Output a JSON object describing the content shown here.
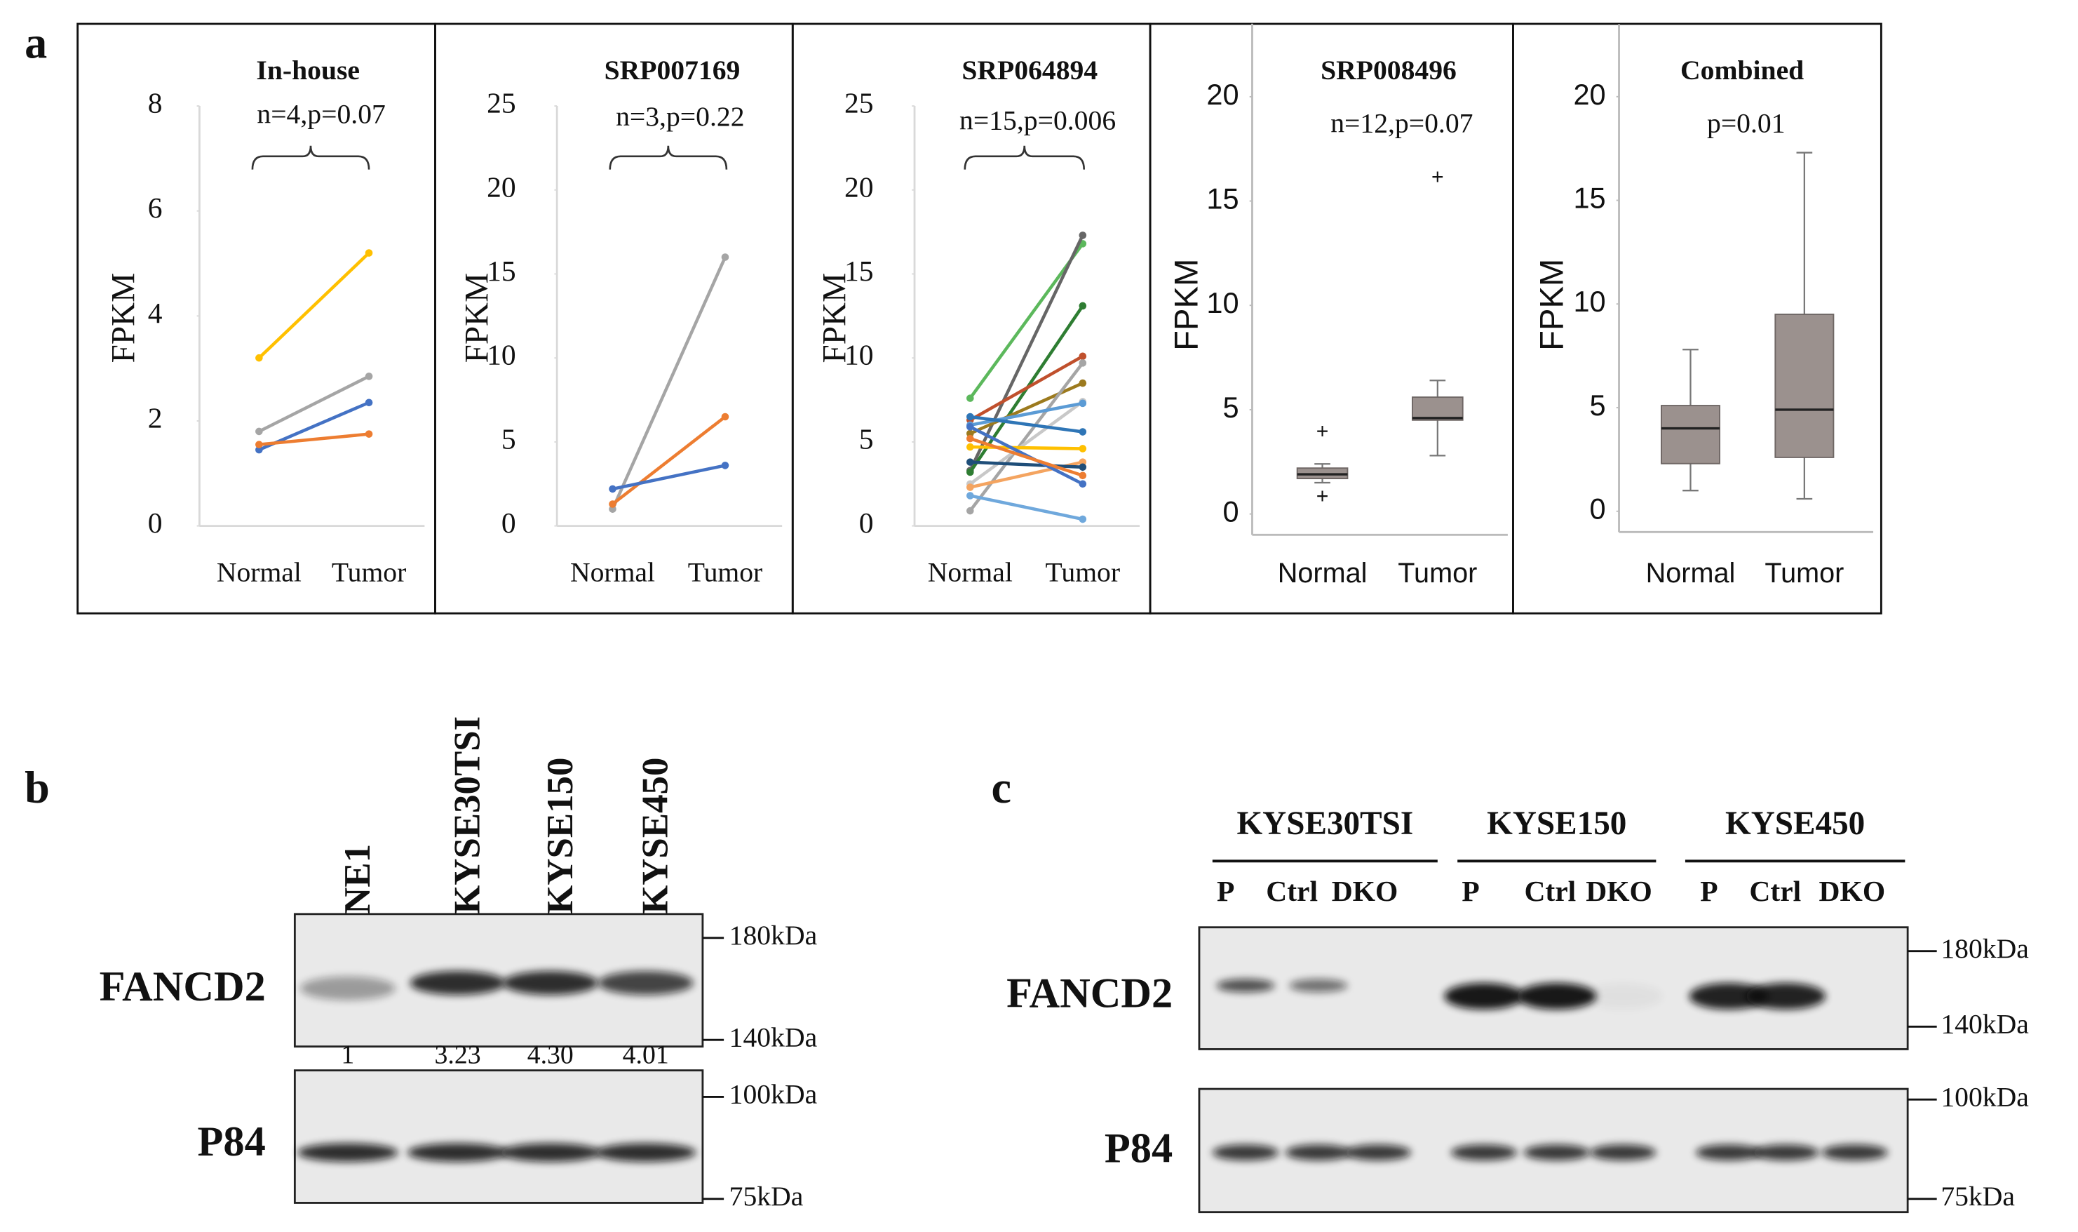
{
  "panel_labels": [
    "a",
    "b",
    "c"
  ],
  "chart_data": [
    {
      "type": "line",
      "title": "In-house",
      "annotation": "n=4,p=0.07",
      "ylabel": "FPKM",
      "categories": [
        "Normal",
        "Tumor"
      ],
      "ylim": [
        0,
        8
      ],
      "yticks": [
        0,
        2,
        4,
        6,
        8
      ],
      "series": [
        {
          "color": "#ffc000",
          "values": [
            3.2,
            5.2
          ]
        },
        {
          "color": "#a5a5a5",
          "values": [
            1.8,
            2.85
          ]
        },
        {
          "color": "#4472c4",
          "values": [
            1.45,
            2.35
          ]
        },
        {
          "color": "#ed7d31",
          "values": [
            1.55,
            1.75
          ]
        }
      ]
    },
    {
      "type": "line",
      "title": "SRP007169",
      "annotation": "n=3,p=0.22",
      "ylabel": "FPKM",
      "categories": [
        "Normal",
        "Tumor"
      ],
      "ylim": [
        0,
        25
      ],
      "yticks": [
        0,
        5,
        10,
        15,
        20,
        25
      ],
      "series": [
        {
          "color": "#a5a5a5",
          "values": [
            1,
            16
          ]
        },
        {
          "color": "#ed7d31",
          "values": [
            1.3,
            6.5
          ]
        },
        {
          "color": "#4472c4",
          "values": [
            2.2,
            3.6
          ]
        }
      ]
    },
    {
      "type": "line",
      "title": "SRP064894",
      "annotation": "n=15,p=0.006",
      "ylabel": "FPKM",
      "categories": [
        "Normal",
        "Tumor"
      ],
      "ylim": [
        0,
        25
      ],
      "yticks": [
        0,
        5,
        10,
        15,
        20,
        25
      ],
      "series": [
        {
          "color": "#5cb85c",
          "values": [
            7.6,
            16.8
          ]
        },
        {
          "color": "#666666",
          "values": [
            3.3,
            17.3
          ]
        },
        {
          "color": "#2e7d32",
          "values": [
            3.2,
            13.1
          ]
        },
        {
          "color": "#c0502d",
          "values": [
            6.3,
            10.1
          ]
        },
        {
          "color": "#9c7a1e",
          "values": [
            5.5,
            8.5
          ]
        },
        {
          "color": "#a5a5a5",
          "values": [
            0.9,
            9.7
          ]
        },
        {
          "color": "#c8c8c8",
          "values": [
            2.5,
            7.4
          ]
        },
        {
          "color": "#5b9bd5",
          "values": [
            6,
            7.3
          ]
        },
        {
          "color": "#2e75b6",
          "values": [
            6.5,
            5.6
          ]
        },
        {
          "color": "#ffc000",
          "values": [
            4.7,
            4.6
          ]
        },
        {
          "color": "#f4a460",
          "values": [
            2.3,
            3.8
          ]
        },
        {
          "color": "#1f4e79",
          "values": [
            3.8,
            3.5
          ]
        },
        {
          "color": "#4472c4",
          "values": [
            5.9,
            2.5
          ]
        },
        {
          "color": "#6fa8dc",
          "values": [
            1.8,
            0.4
          ]
        },
        {
          "color": "#ed7d31",
          "values": [
            5.2,
            3
          ]
        }
      ]
    },
    {
      "type": "box",
      "title": "SRP008496",
      "annotation": "n=12,p=0.07",
      "ylabel": "FPKM",
      "categories": [
        "Normal",
        "Tumor"
      ],
      "ylim": [
        -1,
        23.5
      ],
      "yticks": [
        0,
        5,
        10,
        15,
        20
      ],
      "color": "#9b918e",
      "boxes": [
        {
          "min": 1.5,
          "q1": 1.7,
          "median": 1.9,
          "q3": 2.2,
          "max": 2.4,
          "outliers": [
            3.9,
            0.8
          ]
        },
        {
          "min": 2.8,
          "q1": 4.5,
          "median": 4.6,
          "q3": 5.6,
          "max": 6.4,
          "outliers": [
            16.1
          ]
        }
      ]
    },
    {
      "type": "box",
      "title": "Combined",
      "annotation": "p=0.01",
      "ylabel": "FPKM",
      "categories": [
        "Normal",
        "Tumor"
      ],
      "ylim": [
        -1,
        23.5
      ],
      "yticks": [
        0,
        5,
        10,
        15,
        20
      ],
      "color": "#9b918e",
      "boxes": [
        {
          "min": 1,
          "q1": 2.3,
          "median": 4,
          "q3": 5.1,
          "max": 7.8,
          "outliers": []
        },
        {
          "min": 0.6,
          "q1": 2.6,
          "median": 4.9,
          "q3": 9.5,
          "max": 17.3,
          "outliers": []
        }
      ]
    }
  ],
  "blot_b": {
    "lanes": [
      "NE1",
      "KYSE30TSI",
      "KYSE150",
      "KYSE450"
    ],
    "proteins": [
      "FANCD2",
      "P84"
    ],
    "markers": [
      "180kDa",
      "140kDa",
      "100kDa",
      "75kDa"
    ],
    "quantification": {
      "values": [
        1,
        3.23,
        4.3,
        4.01
      ],
      "value_labels": [
        "1",
        "3.23",
        "4.30",
        "4.01"
      ]
    }
  },
  "blot_c": {
    "groups": [
      {
        "name": "KYSE30TSI",
        "lanes": [
          "P",
          "Ctrl",
          "DKO"
        ]
      },
      {
        "name": "KYSE150",
        "lanes": [
          "P",
          "Ctrl",
          "DKO"
        ]
      },
      {
        "name": "KYSE450",
        "lanes": [
          "P",
          "Ctrl",
          "DKO"
        ]
      }
    ],
    "proteins": [
      "FANCD2",
      "P84"
    ],
    "markers": [
      "180kDa",
      "140kDa",
      "100kDa",
      "75kDa"
    ]
  }
}
